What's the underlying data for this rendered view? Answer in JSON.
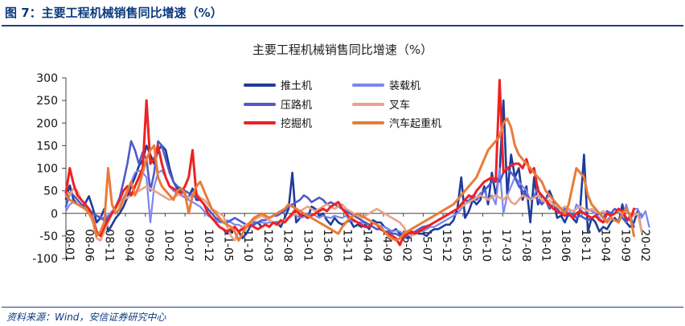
{
  "header": {
    "caption": "图 7：主要工程机械销售同比增速（%）"
  },
  "footer": {
    "source": "资料来源：Wind，安信证券研究中心"
  },
  "chart_data": {
    "type": "line",
    "title": "主要工程机械销售同比增速（%）",
    "xlabel": "",
    "ylabel": "",
    "ylim": [
      -100,
      300
    ],
    "yticks": [
      -100,
      -50,
      0,
      50,
      100,
      150,
      200,
      250,
      300
    ],
    "grid": false,
    "legend_position": "top",
    "x_start": "08-01",
    "x_tick_labels": [
      "08-01",
      "08-06",
      "08-11",
      "09-04",
      "09-09",
      "10-02",
      "10-07",
      "10-12",
      "11-05",
      "11-10",
      "12-03",
      "12-08",
      "13-01",
      "13-06",
      "13-11",
      "14-04",
      "14-09",
      "15-02",
      "15-07",
      "15-12",
      "16-05",
      "16-10",
      "17-03",
      "17-08",
      "18-01",
      "18-06",
      "18-11",
      "19-04",
      "19-09",
      "20-02"
    ],
    "series": [
      {
        "name": "推土机",
        "color": "#1f3c98",
        "width": 2.6,
        "values": [
          32,
          62,
          30,
          20,
          15,
          22,
          38,
          12,
          -20,
          -10,
          10,
          -40,
          -25,
          -10,
          0,
          15,
          35,
          60,
          80,
          105,
          118,
          150,
          130,
          110,
          140,
          150,
          140,
          100,
          70,
          55,
          50,
          40,
          35,
          55,
          30,
          30,
          20,
          0,
          -10,
          -20,
          -30,
          -35,
          -45,
          -40,
          -30,
          -40,
          -55,
          -45,
          -30,
          -20,
          -20,
          -30,
          -25,
          -30,
          -20,
          -20,
          -30,
          -10,
          10,
          90,
          -20,
          -10,
          -5,
          -10,
          15,
          10,
          -5,
          0,
          -15,
          -25,
          -10,
          -20,
          -25,
          -20,
          -15,
          -30,
          -25,
          -30,
          -25,
          -35,
          -15,
          -20,
          -20,
          -30,
          -35,
          -40,
          -35,
          -45,
          -50,
          -55,
          -45,
          -40,
          -45,
          -45,
          -50,
          -40,
          -35,
          -35,
          -30,
          -25,
          -25,
          -15,
          10,
          80,
          -10,
          5,
          30,
          20,
          30,
          60,
          20,
          90,
          40,
          90,
          250,
          40,
          130,
          80,
          100,
          30,
          60,
          -20,
          80,
          20,
          40,
          30,
          50,
          30,
          -10,
          -5,
          -20,
          0,
          -10,
          -20,
          10,
          130,
          -40,
          -10,
          -20,
          -40,
          -30,
          -35,
          -20,
          -10,
          -20,
          20,
          -20,
          -30,
          -20,
          5,
          -40
        ]
      },
      {
        "name": "装载机",
        "color": "#7b86f2",
        "width": 2.2,
        "values": [
          5,
          20,
          25,
          20,
          15,
          10,
          5,
          0,
          -5,
          -8,
          -10,
          -5,
          5,
          10,
          20,
          35,
          50,
          70,
          90,
          95,
          90,
          80,
          -20,
          60,
          90,
          95,
          80,
          60,
          50,
          45,
          40,
          35,
          30,
          25,
          20,
          15,
          5,
          -5,
          -10,
          -15,
          -20,
          -20,
          -15,
          -20,
          -25,
          -25,
          -30,
          -28,
          -25,
          -22,
          -20,
          -20,
          -22,
          -20,
          -20,
          -18,
          -20,
          -15,
          -10,
          0,
          -5,
          -10,
          -8,
          -5,
          0,
          -5,
          -10,
          -5,
          -8,
          -10,
          -5,
          -8,
          -10,
          -5,
          -15,
          -18,
          -20,
          -20,
          -22,
          -25,
          -20,
          -25,
          -28,
          -30,
          -35,
          -40,
          -38,
          -40,
          -45,
          -45,
          -42,
          -40,
          -38,
          -40,
          -35,
          -30,
          -30,
          -25,
          -20,
          -15,
          -10,
          -5,
          0,
          10,
          20,
          30,
          40,
          35,
          45,
          50,
          30,
          40,
          20,
          100,
          0,
          40,
          60,
          80,
          70,
          60,
          50,
          30,
          40,
          60,
          20,
          30,
          40,
          30,
          20,
          10,
          0,
          10,
          -10,
          20,
          10,
          0,
          10,
          5,
          0,
          -10,
          -20,
          -15,
          -5,
          0,
          5,
          -10,
          20,
          -10,
          10,
          10,
          -10,
          5,
          -30
        ]
      },
      {
        "name": "压路机",
        "color": "#4f5bc7",
        "width": 2.6,
        "values": [
          15,
          45,
          40,
          30,
          20,
          15,
          10,
          0,
          -5,
          -10,
          -15,
          -10,
          0,
          15,
          35,
          70,
          110,
          160,
          140,
          110,
          135,
          120,
          50,
          90,
          160,
          150,
          120,
          90,
          70,
          60,
          55,
          50,
          45,
          40,
          35,
          30,
          20,
          10,
          0,
          -10,
          -15,
          -20,
          -20,
          -15,
          -10,
          -15,
          -20,
          -25,
          -30,
          -25,
          -20,
          -15,
          -15,
          -10,
          -5,
          -5,
          0,
          5,
          15,
          20,
          25,
          30,
          40,
          35,
          25,
          30,
          35,
          30,
          20,
          25,
          20,
          15,
          10,
          5,
          0,
          -5,
          -10,
          -15,
          -20,
          -25,
          -30,
          -35,
          -35,
          -40,
          -40,
          -45,
          -45,
          -50,
          -55,
          -50,
          -45,
          -40,
          -35,
          -30,
          -28,
          -25,
          -20,
          -15,
          -10,
          -5,
          0,
          5,
          10,
          20,
          30,
          25,
          35,
          30,
          40,
          50,
          60,
          70,
          80,
          70,
          90,
          100,
          90,
          80,
          60,
          50,
          40,
          30,
          40,
          30,
          20,
          30,
          10,
          20,
          10,
          0,
          10,
          -5,
          0,
          -10,
          -5,
          -10,
          -15,
          -10,
          -5,
          0,
          -10,
          5,
          0,
          10,
          5,
          -10,
          -20,
          -5,
          -30
        ]
      },
      {
        "name": "叉车",
        "color": "#eaa389",
        "width": 2.6,
        "values": [
          50,
          40,
          55,
          50,
          30,
          20,
          0,
          -20,
          -55,
          -60,
          -40,
          -20,
          0,
          10,
          20,
          30,
          35,
          40,
          45,
          50,
          55,
          60,
          55,
          50,
          45,
          40,
          35,
          30,
          35,
          40,
          45,
          40,
          35,
          40,
          45,
          35,
          30,
          20,
          10,
          5,
          0,
          -5,
          -30,
          -50,
          -60,
          -40,
          -30,
          -25,
          -20,
          -15,
          -10,
          -5,
          -10,
          -15,
          -20,
          -25,
          -20,
          -15,
          -10,
          -5,
          0,
          5,
          10,
          15,
          10,
          5,
          10,
          15,
          20,
          15,
          10,
          15,
          20,
          10,
          5,
          0,
          -5,
          -10,
          -5,
          0,
          5,
          10,
          5,
          0,
          -5,
          -10,
          -15,
          -20,
          -30,
          -45,
          -50,
          -45,
          -40,
          -35,
          -30,
          -25,
          -20,
          -15,
          -10,
          -5,
          0,
          5,
          10,
          15,
          20,
          25,
          30,
          35,
          40,
          35,
          30,
          35,
          40,
          35,
          30,
          40,
          25,
          20,
          30,
          40,
          35,
          30,
          35,
          40,
          30,
          25,
          30,
          20,
          15,
          10,
          15,
          10,
          5,
          10,
          15,
          10,
          5,
          10,
          5,
          0,
          5,
          0,
          -5,
          0,
          5,
          0,
          5,
          0,
          -5,
          0,
          -40
        ]
      },
      {
        "name": "挖掘机",
        "color": "#ee2222",
        "width": 3,
        "values": [
          45,
          100,
          65,
          40,
          30,
          20,
          10,
          -10,
          -40,
          -50,
          -30,
          -15,
          0,
          15,
          30,
          50,
          60,
          40,
          60,
          80,
          100,
          250,
          110,
          120,
          150,
          110,
          80,
          60,
          55,
          50,
          45,
          60,
          80,
          140,
          40,
          30,
          20,
          0,
          -10,
          -20,
          -30,
          -35,
          -40,
          -35,
          -30,
          -40,
          -35,
          -30,
          -25,
          -30,
          -35,
          -30,
          -25,
          -30,
          -20,
          -25,
          -15,
          -20,
          -10,
          0,
          10,
          -5,
          0,
          -10,
          -5,
          0,
          5,
          10,
          5,
          15,
          20,
          25,
          10,
          0,
          -10,
          -15,
          -20,
          -25,
          -30,
          -30,
          -20,
          -25,
          -35,
          -40,
          -45,
          -50,
          -55,
          -70,
          -50,
          -45,
          -40,
          -45,
          -40,
          -35,
          -30,
          -25,
          -20,
          -15,
          -10,
          -5,
          0,
          5,
          10,
          20,
          30,
          40,
          35,
          50,
          60,
          70,
          75,
          80,
          70,
          295,
          90,
          100,
          105,
          110,
          110,
          100,
          120,
          90,
          100,
          50,
          40,
          30,
          20,
          10,
          5,
          0,
          -5,
          0,
          -10,
          0,
          5,
          0,
          -5,
          -10,
          -5,
          -15,
          -20,
          0,
          -5,
          0,
          10,
          5,
          -10,
          -15,
          10
        ]
      },
      {
        "name": "汽车起重机",
        "color": "#e87c3a",
        "width": 3,
        "values": [
          40,
          30,
          25,
          20,
          15,
          10,
          0,
          -10,
          -50,
          -40,
          -20,
          100,
          20,
          0,
          10,
          30,
          50,
          70,
          40,
          60,
          90,
          120,
          140,
          150,
          80,
          60,
          50,
          40,
          30,
          50,
          55,
          45,
          0,
          40,
          60,
          70,
          50,
          30,
          10,
          0,
          -10,
          -20,
          -25,
          -30,
          -40,
          -60,
          -45,
          -30,
          -20,
          -10,
          -5,
          0,
          -5,
          -10,
          -5,
          0,
          5,
          10,
          20,
          15,
          10,
          5,
          0,
          -5,
          -10,
          -15,
          -20,
          -25,
          -30,
          -35,
          -40,
          -45,
          -30,
          -20,
          -10,
          -5,
          0,
          -5,
          -10,
          -15,
          -20,
          -25,
          -30,
          -40,
          -50,
          -55,
          -60,
          -55,
          -45,
          -40,
          -35,
          -30,
          -25,
          -20,
          -15,
          -10,
          -5,
          0,
          5,
          10,
          15,
          20,
          30,
          40,
          50,
          60,
          70,
          80,
          100,
          120,
          140,
          150,
          160,
          170,
          200,
          210,
          190,
          150,
          130,
          120,
          110,
          100,
          90,
          80,
          70,
          50,
          40,
          30,
          20,
          10,
          0,
          20,
          60,
          100,
          90,
          80,
          40,
          20,
          10,
          0,
          -10,
          -20,
          -10,
          -15,
          -20,
          0,
          10,
          -5,
          -50
        ]
      }
    ]
  }
}
